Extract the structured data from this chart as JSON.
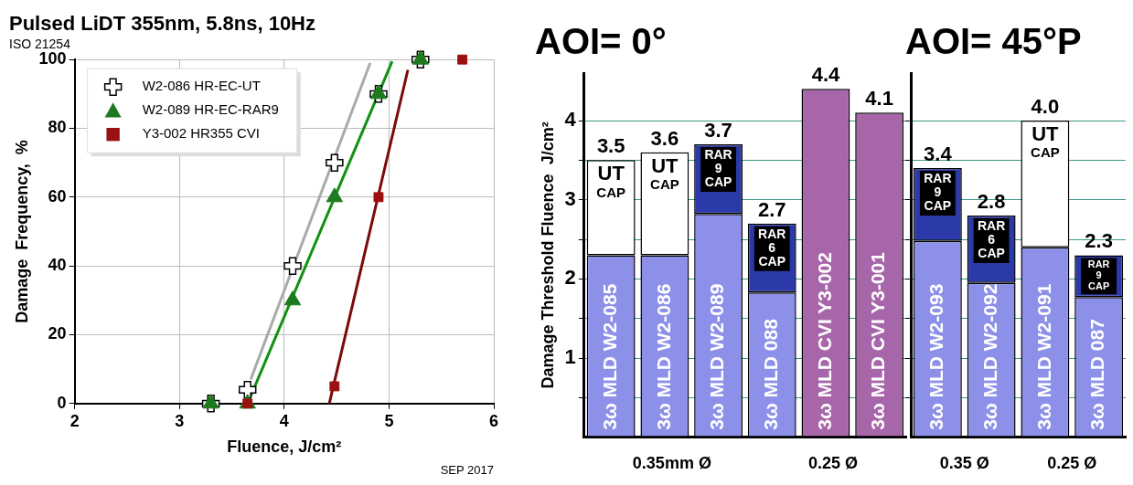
{
  "chart_data": [
    {
      "type": "scatter",
      "title": "Pulsed LiDT 355nm, 5.8ns, 10Hz",
      "subtitle": "ISO 21254",
      "xlabel": "Fluence, J/cm²",
      "ylabel": "Damage  Frequency,  %",
      "xlim": [
        2,
        6
      ],
      "xticks": [
        2,
        3,
        4,
        5,
        6
      ],
      "ylim": [
        0,
        100
      ],
      "yticks": [
        0,
        20,
        40,
        60,
        80,
        100
      ],
      "grid": true,
      "legend": "top left",
      "annotations": [
        "SEP 2017"
      ],
      "series": [
        {
          "name": "W2-086 HR-EC-UT",
          "color": "#ffffff",
          "marker": "cross",
          "x": [
            3.3,
            3.65,
            4.08,
            4.48,
            4.9,
            5.3
          ],
          "values": [
            0,
            4,
            40,
            70,
            90,
            100
          ]
        },
        {
          "name": "W2-089 HR-EC-RAR9",
          "color": "#1e7a1e",
          "marker": "triangle",
          "x": [
            3.3,
            3.65,
            4.08,
            4.48,
            4.9,
            5.3
          ],
          "values": [
            0,
            0,
            30,
            60,
            90,
            100
          ]
        },
        {
          "name": "Y3-002 HR355 CVI",
          "color": "#9b1010",
          "marker": "square",
          "x": [
            3.65,
            4.48,
            4.9,
            5.7
          ],
          "values": [
            0,
            5,
            60,
            100
          ]
        },
        {
          "type": "line",
          "color": "#aaaaaa",
          "marker": "none",
          "x": [
            3.68,
            4.82
          ],
          "values": [
            7,
            99
          ]
        },
        {
          "type": "line",
          "color": "#129012",
          "marker": "none",
          "x": [
            3.65,
            5.03
          ],
          "values": [
            0,
            99.5
          ]
        },
        {
          "type": "line",
          "color": "#7a0a0a",
          "marker": "none",
          "x": [
            4.43,
            5.18
          ],
          "values": [
            0,
            97
          ]
        }
      ]
    },
    {
      "type": "bar",
      "stacked": true,
      "title": "AOI= 0°",
      "ylabel": "Damage Threshold Fluence  J/cm²",
      "categories": [
        "3ω MLD W2-085",
        "3ω MLD W2-086",
        "3ω MLD W2-089",
        "3ω MLD 088",
        "3ω MLD CVI Y3-002",
        "3ω MLD CVI Y3-001"
      ],
      "ylim": [
        0,
        4.6
      ],
      "yticks": [
        {
          "value": 0.5,
          "label": null
        },
        1,
        {
          "value": 1.5,
          "label": null
        },
        2,
        {
          "value": 2.5,
          "label": null
        },
        3,
        {
          "value": 3.5,
          "label": null
        },
        4
      ],
      "grid": "y",
      "totals": [
        "3.5",
        "3.6",
        "3.7",
        "2.7",
        "4.4",
        "4.1"
      ],
      "annotations": [
        "0.35mm Ø",
        "0.25 Ø"
      ],
      "series": [
        {
          "colors": [
            "#8c90e8",
            "#8c90e8",
            "#8c90e8",
            "#8c90e8",
            "#a866aa",
            "#a866aa"
          ],
          "values": [
            2.3,
            2.3,
            2.82,
            1.83,
            4.4,
            4.1
          ]
        },
        {
          "name": "UT CAP",
          "color": "#ffffff",
          "values": [
            1.2,
            1.3,
            null,
            null,
            null,
            null
          ]
        },
        {
          "name": "RAR 9 CAP",
          "color": "#2b3aa8",
          "values": [
            null,
            null,
            0.88,
            null,
            null,
            null
          ]
        },
        {
          "name": "RAR 6 CAP",
          "color": "#2b3aa8",
          "values": [
            null,
            null,
            null,
            0.87,
            null,
            null
          ]
        }
      ]
    },
    {
      "type": "bar",
      "stacked": true,
      "title": "AOI= 45°P",
      "categories": [
        "3ω MLD W2-093",
        "3ω MLD W2-092",
        "3ω MLD W2-091",
        "3ω MLD 087"
      ],
      "ylim": [
        0,
        4.6
      ],
      "yticks": [
        {
          "value": 0.5,
          "label": null
        },
        1,
        {
          "value": 1.5,
          "label": null
        },
        2,
        {
          "value": 2.5,
          "label": null
        },
        3,
        {
          "value": 3.5,
          "label": null
        },
        4
      ],
      "grid": "y",
      "tick_labels": "x",
      "totals": [
        "3.4",
        "2.8",
        "4.0",
        "2.3"
      ],
      "annotations": [
        "0.35 Ø",
        "0.25 Ø"
      ],
      "series": [
        {
          "colors": [
            "#8c90e8",
            "#8c90e8",
            "#8c90e8",
            "#8c90e8"
          ],
          "values": [
            2.48,
            1.95,
            2.4,
            1.77
          ]
        },
        {
          "name": "UT CAP",
          "color": "#ffffff",
          "values": [
            null,
            null,
            1.6,
            null
          ]
        },
        {
          "name": "RAR 9 CAP",
          "color": "#2b3aa8",
          "values": [
            0.92,
            null,
            null,
            0.53
          ]
        },
        {
          "name": "RAR 6 CAP",
          "color": "#2b3aa8",
          "values": [
            null,
            0.85,
            null,
            null
          ]
        }
      ]
    }
  ]
}
